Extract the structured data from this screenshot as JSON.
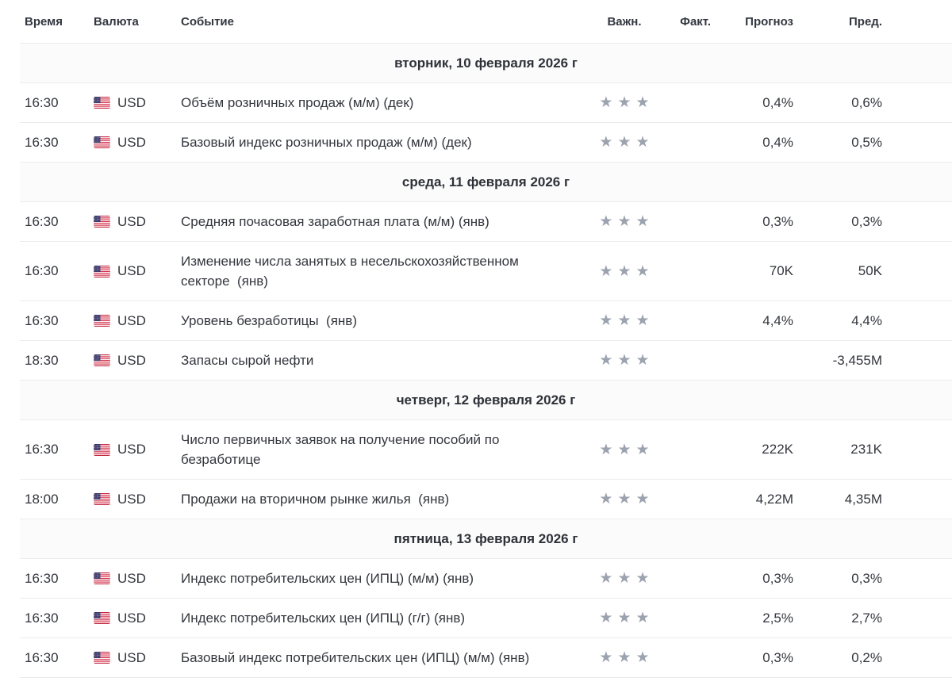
{
  "colors": {
    "star": "#9ca3af",
    "separator": "#ececec",
    "date_row_bg": "#fbfbfb",
    "text": "#333333"
  },
  "icons": {
    "star": "★",
    "flag": "us-flag"
  },
  "table": {
    "headers": {
      "time": "Время",
      "currency": "Валюта",
      "event": "Событие",
      "importance": "Важн.",
      "actual": "Факт.",
      "forecast": "Прогноз",
      "previous": "Пред."
    },
    "days": [
      {
        "date_label": "вторник, 10 февраля 2026 г",
        "rows": [
          {
            "time": "16:30",
            "currency": "USD",
            "flag": "us-flag",
            "event": "Объём розничных продаж (м/м) (дек)",
            "importance": 3,
            "actual": "",
            "forecast": "0,4%",
            "previous": "0,6%"
          },
          {
            "time": "16:30",
            "currency": "USD",
            "flag": "us-flag",
            "event": "Базовый индекс розничных продаж (м/м) (дек)",
            "importance": 3,
            "actual": "",
            "forecast": "0,4%",
            "previous": "0,5%"
          }
        ]
      },
      {
        "date_label": "среда, 11 февраля 2026 г",
        "rows": [
          {
            "time": "16:30",
            "currency": "USD",
            "flag": "us-flag",
            "event": "Средняя почасовая заработная плата (м/м) (янв)",
            "importance": 3,
            "actual": "",
            "forecast": "0,3%",
            "previous": "0,3%"
          },
          {
            "time": "16:30",
            "currency": "USD",
            "flag": "us-flag",
            "event": "Изменение числа занятых в несельскохозяйственном секторе  (янв)",
            "importance": 3,
            "actual": "",
            "forecast": "70K",
            "previous": "50K"
          },
          {
            "time": "16:30",
            "currency": "USD",
            "flag": "us-flag",
            "event": "Уровень безработицы  (янв)",
            "importance": 3,
            "actual": "",
            "forecast": "4,4%",
            "previous": "4,4%"
          },
          {
            "time": "18:30",
            "currency": "USD",
            "flag": "us-flag",
            "event": "Запасы сырой нефти",
            "importance": 3,
            "actual": "",
            "forecast": "",
            "previous": "-3,455M"
          }
        ]
      },
      {
        "date_label": "четверг, 12 февраля 2026 г",
        "rows": [
          {
            "time": "16:30",
            "currency": "USD",
            "flag": "us-flag",
            "event": "Число первичных заявок на получение пособий по безработице",
            "importance": 3,
            "actual": "",
            "forecast": "222K",
            "previous": "231K"
          },
          {
            "time": "18:00",
            "currency": "USD",
            "flag": "us-flag",
            "event": "Продажи на вторичном рынке жилья  (янв)",
            "importance": 3,
            "actual": "",
            "forecast": "4,22M",
            "previous": "4,35M"
          }
        ]
      },
      {
        "date_label": "пятница, 13 февраля 2026 г",
        "rows": [
          {
            "time": "16:30",
            "currency": "USD",
            "flag": "us-flag",
            "event": "Индекс потребительских цен (ИПЦ) (м/м) (янв)",
            "importance": 3,
            "actual": "",
            "forecast": "0,3%",
            "previous": "0,3%"
          },
          {
            "time": "16:30",
            "currency": "USD",
            "flag": "us-flag",
            "event": "Индекс потребительских цен (ИПЦ) (г/г) (янв)",
            "importance": 3,
            "actual": "",
            "forecast": "2,5%",
            "previous": "2,7%"
          },
          {
            "time": "16:30",
            "currency": "USD",
            "flag": "us-flag",
            "event": "Базовый индекс потребительских цен (ИПЦ) (м/м) (янв)",
            "importance": 3,
            "actual": "",
            "forecast": "0,3%",
            "previous": "0,2%"
          }
        ]
      }
    ]
  }
}
